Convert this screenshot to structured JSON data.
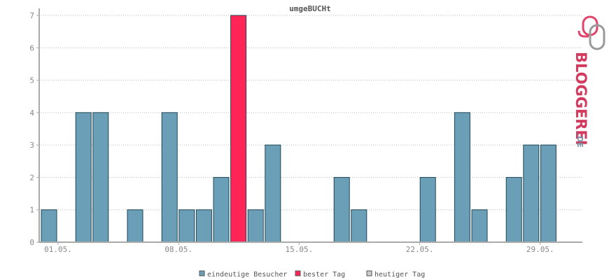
{
  "chart_data": {
    "type": "bar",
    "title": "umgeBUCHt",
    "x": [
      "01.05.",
      "02.05.",
      "03.05.",
      "04.05.",
      "05.05.",
      "06.05.",
      "07.05.",
      "08.05.",
      "09.05.",
      "10.05.",
      "11.05.",
      "12.05.",
      "13.05.",
      "14.05.",
      "15.05.",
      "16.05.",
      "17.05.",
      "18.05.",
      "19.05.",
      "20.05.",
      "21.05.",
      "22.05.",
      "23.05.",
      "24.05.",
      "25.05.",
      "26.05.",
      "27.05.",
      "28.05.",
      "29.05.",
      "30.05."
    ],
    "series": [
      {
        "name": "eindeutige Besucher",
        "values": [
          1,
          0,
          4,
          4,
          0,
          1,
          0,
          4,
          1,
          1,
          2,
          7,
          1,
          3,
          0,
          0,
          0,
          2,
          1,
          0,
          0,
          0,
          2,
          0,
          4,
          1,
          0,
          2,
          3,
          3
        ]
      }
    ],
    "best_day_index": 11,
    "xticks": [
      "01.05.",
      "08.05.",
      "15.05.",
      "22.05.",
      "29.05."
    ],
    "xtick_indices": [
      0,
      7,
      14,
      21,
      28
    ],
    "yticks": [
      0,
      1,
      2,
      3,
      4,
      5,
      6,
      7
    ],
    "ylim": [
      0,
      7
    ],
    "grid": true,
    "legend": {
      "position": "bottom",
      "items": [
        {
          "label": "eindeutige Besucher",
          "color": "#6a9fb7"
        },
        {
          "label": "bester Tag",
          "color": "#ff2657"
        },
        {
          "label": "heutiger Tag",
          "color": "#cccccc"
        }
      ]
    },
    "colors": {
      "bar": "#6a9fb7",
      "best": "#ff2657",
      "bar_stroke": "#1e4655",
      "axis": "#aaaaaa",
      "grid": "#bbbbbb"
    }
  },
  "logo": {
    "brand": "BLOGGEREI",
    "tld": ".DE"
  }
}
